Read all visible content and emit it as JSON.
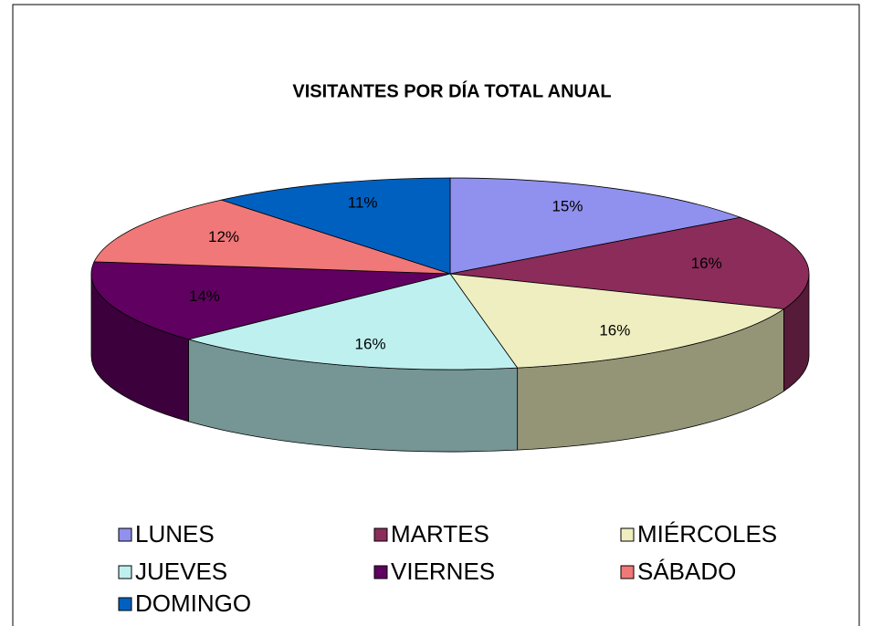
{
  "chart_data": {
    "type": "pie3d",
    "title": "VISITANTES POR DÍA TOTAL ANUAL",
    "categories": [
      "LUNES",
      "MARTES",
      "MIÉRCOLES",
      "JUEVES",
      "VIERNES",
      "SÁBADO",
      "DOMINGO"
    ],
    "values": [
      15,
      16,
      16,
      16,
      14,
      12,
      11
    ],
    "value_labels": [
      "15%",
      "16%",
      "16%",
      "16%",
      "14%",
      "12%",
      "11%"
    ],
    "colors": [
      "#9090ee",
      "#8b2c5a",
      "#eeeec0",
      "#bff0f0",
      "#600060",
      "#f07878",
      "#0060c0"
    ],
    "legend": "bottom"
  }
}
